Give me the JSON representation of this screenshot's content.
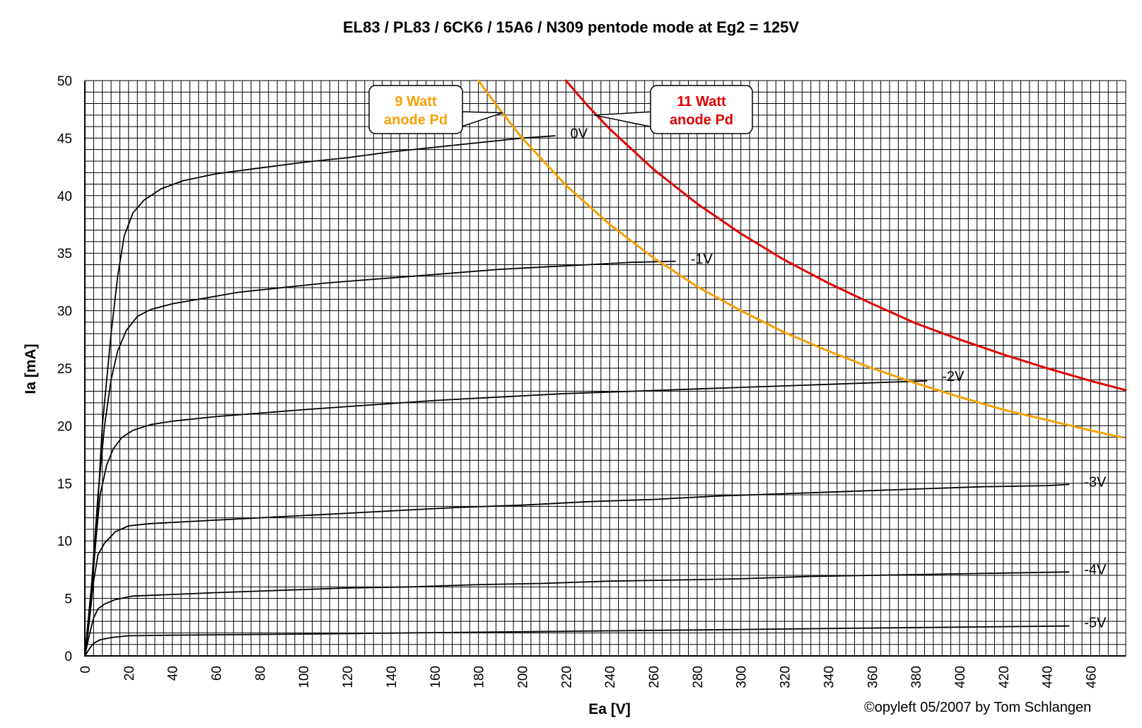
{
  "chart_data": {
    "type": "line",
    "title": "EL83 / PL83 / 6CK6 / 15A6 / N309 pentode mode at Eg2 = 125V",
    "xlabel": "Ea [V]",
    "ylabel": "Ia [mA]",
    "xlim": [
      0,
      476
    ],
    "ylim": [
      0,
      50
    ],
    "x_ticks": [
      0,
      20,
      40,
      60,
      80,
      100,
      120,
      140,
      160,
      180,
      200,
      220,
      240,
      260,
      280,
      300,
      320,
      340,
      360,
      380,
      400,
      420,
      440,
      460
    ],
    "y_ticks": [
      0,
      5,
      10,
      15,
      20,
      25,
      30,
      35,
      40,
      45,
      50
    ],
    "grid": true,
    "grid_minor_x": 4,
    "grid_minor_y": 1,
    "series": [
      {
        "name": "0V",
        "color": "#000000",
        "points": [
          [
            0,
            0
          ],
          [
            2,
            3
          ],
          [
            5,
            10
          ],
          [
            8,
            20
          ],
          [
            12,
            28
          ],
          [
            15,
            33
          ],
          [
            18,
            36.5
          ],
          [
            22,
            38.5
          ],
          [
            27,
            39.6
          ],
          [
            35,
            40.6
          ],
          [
            45,
            41.3
          ],
          [
            60,
            41.9
          ],
          [
            80,
            42.4
          ],
          [
            100,
            42.9
          ],
          [
            120,
            43.3
          ],
          [
            140,
            43.8
          ],
          [
            160,
            44.2
          ],
          [
            180,
            44.6
          ],
          [
            200,
            45
          ],
          [
            215,
            45.2
          ]
        ]
      },
      {
        "name": "-1V",
        "color": "#000000",
        "points": [
          [
            0,
            0
          ],
          [
            3,
            6
          ],
          [
            6,
            14
          ],
          [
            9,
            20
          ],
          [
            12,
            24
          ],
          [
            15,
            26.5
          ],
          [
            19,
            28.3
          ],
          [
            24,
            29.5
          ],
          [
            30,
            30.1
          ],
          [
            40,
            30.6
          ],
          [
            55,
            31.1
          ],
          [
            70,
            31.6
          ],
          [
            90,
            32
          ],
          [
            110,
            32.4
          ],
          [
            130,
            32.7
          ],
          [
            150,
            33
          ],
          [
            170,
            33.3
          ],
          [
            190,
            33.6
          ],
          [
            210,
            33.8
          ],
          [
            230,
            34
          ],
          [
            250,
            34.2
          ],
          [
            270,
            34.3
          ]
        ]
      },
      {
        "name": "-2V",
        "color": "#000000",
        "points": [
          [
            0,
            0
          ],
          [
            3,
            6
          ],
          [
            5,
            10
          ],
          [
            7,
            14
          ],
          [
            10,
            16.6
          ],
          [
            13,
            18
          ],
          [
            17,
            19
          ],
          [
            22,
            19.6
          ],
          [
            30,
            20.1
          ],
          [
            40,
            20.4
          ],
          [
            60,
            20.8
          ],
          [
            80,
            21.1
          ],
          [
            100,
            21.4
          ],
          [
            130,
            21.8
          ],
          [
            160,
            22.2
          ],
          [
            190,
            22.5
          ],
          [
            220,
            22.8
          ],
          [
            250,
            23
          ],
          [
            280,
            23.2
          ],
          [
            310,
            23.4
          ],
          [
            340,
            23.6
          ],
          [
            370,
            23.8
          ],
          [
            385,
            23.9
          ]
        ]
      },
      {
        "name": "-3V",
        "color": "#000000",
        "points": [
          [
            0,
            0
          ],
          [
            2,
            3
          ],
          [
            4,
            6.5
          ],
          [
            6,
            8.8
          ],
          [
            9,
            9.8
          ],
          [
            14,
            10.8
          ],
          [
            20,
            11.3
          ],
          [
            30,
            11.5
          ],
          [
            50,
            11.7
          ],
          [
            80,
            12
          ],
          [
            110,
            12.3
          ],
          [
            140,
            12.6
          ],
          [
            170,
            12.9
          ],
          [
            200,
            13.1
          ],
          [
            230,
            13.4
          ],
          [
            260,
            13.6
          ],
          [
            290,
            13.9
          ],
          [
            320,
            14.1
          ],
          [
            350,
            14.3
          ],
          [
            380,
            14.5
          ],
          [
            410,
            14.7
          ],
          [
            440,
            14.8
          ],
          [
            450,
            14.9
          ]
        ]
      },
      {
        "name": "-4V",
        "color": "#000000",
        "points": [
          [
            0,
            0
          ],
          [
            2,
            1.8
          ],
          [
            4,
            3.3
          ],
          [
            6,
            4.1
          ],
          [
            9,
            4.5
          ],
          [
            14,
            4.9
          ],
          [
            22,
            5.2
          ],
          [
            35,
            5.3
          ],
          [
            60,
            5.5
          ],
          [
            90,
            5.7
          ],
          [
            120,
            5.9
          ],
          [
            150,
            6
          ],
          [
            180,
            6.2
          ],
          [
            210,
            6.3
          ],
          [
            240,
            6.5
          ],
          [
            270,
            6.6
          ],
          [
            300,
            6.7
          ],
          [
            330,
            6.9
          ],
          [
            360,
            7
          ],
          [
            390,
            7.1
          ],
          [
            420,
            7.2
          ],
          [
            450,
            7.3
          ]
        ]
      },
      {
        "name": "-5V",
        "color": "#000000",
        "points": [
          [
            0,
            0
          ],
          [
            2,
            0.6
          ],
          [
            4,
            1.1
          ],
          [
            7,
            1.4
          ],
          [
            12,
            1.6
          ],
          [
            20,
            1.75
          ],
          [
            40,
            1.8
          ],
          [
            70,
            1.85
          ],
          [
            100,
            1.9
          ],
          [
            150,
            2
          ],
          [
            200,
            2.1
          ],
          [
            250,
            2.2
          ],
          [
            300,
            2.3
          ],
          [
            350,
            2.4
          ],
          [
            400,
            2.5
          ],
          [
            450,
            2.6
          ]
        ]
      },
      {
        "name": "9 Watt anode Pd",
        "color": "#f5a000",
        "power_watt": 9,
        "points": [
          [
            180,
            50
          ],
          [
            190,
            47.4
          ],
          [
            200,
            45
          ],
          [
            220,
            40.9
          ],
          [
            240,
            37.5
          ],
          [
            260,
            34.6
          ],
          [
            280,
            32.1
          ],
          [
            300,
            30
          ],
          [
            320,
            28.1
          ],
          [
            340,
            26.5
          ],
          [
            360,
            25
          ],
          [
            380,
            23.7
          ],
          [
            400,
            22.5
          ],
          [
            420,
            21.4
          ],
          [
            440,
            20.5
          ],
          [
            460,
            19.6
          ],
          [
            474,
            19
          ]
        ]
      },
      {
        "name": "11 Watt anode Pd",
        "color": "#e00000",
        "power_watt": 11,
        "points": [
          [
            220,
            50
          ],
          [
            230,
            47.8
          ],
          [
            240,
            45.8
          ],
          [
            260,
            42.3
          ],
          [
            280,
            39.3
          ],
          [
            300,
            36.7
          ],
          [
            320,
            34.4
          ],
          [
            340,
            32.4
          ],
          [
            360,
            30.6
          ],
          [
            380,
            28.9
          ],
          [
            400,
            27.5
          ],
          [
            420,
            26.2
          ],
          [
            440,
            25
          ],
          [
            460,
            23.9
          ],
          [
            476,
            23.1
          ]
        ]
      }
    ]
  },
  "curve_labels": {
    "g0": "0V",
    "g1": "-1V",
    "g2": "-2V",
    "g3": "-3V",
    "g4": "-4V",
    "g5": "-5V"
  },
  "callouts": {
    "pd9": {
      "line1": "9 Watt",
      "line2": "anode Pd",
      "color": "#f5a000"
    },
    "pd11": {
      "line1": "11 Watt",
      "line2": "anode Pd",
      "color": "#e00000"
    }
  },
  "credit": "©opyleft 05/2007 by Tom Schlangen"
}
